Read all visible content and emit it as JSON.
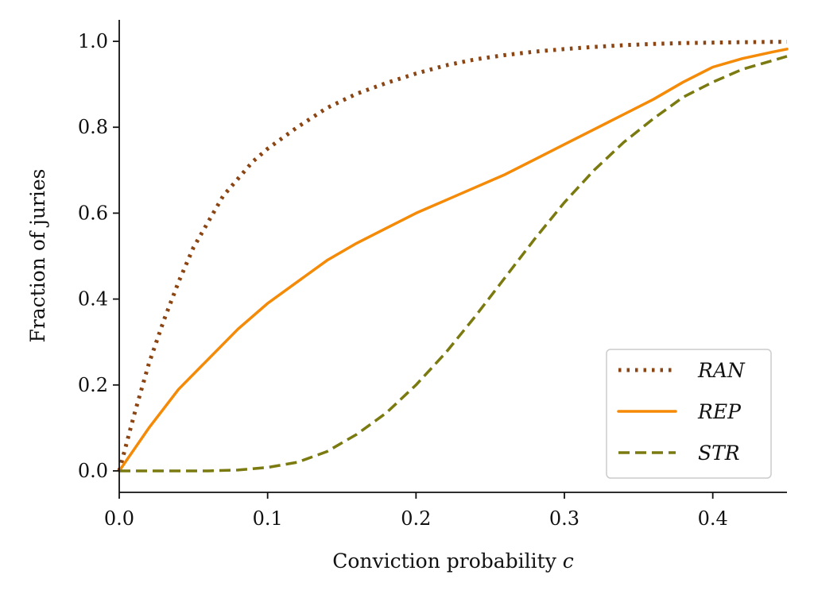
{
  "chart_data": {
    "type": "line",
    "title": "",
    "xlabel": "Conviction probability",
    "xlabel_var": "c",
    "ylabel": "Fraction of juries",
    "xlim": [
      0,
      0.45
    ],
    "ylim": [
      -0.05,
      1.05
    ],
    "xticks": [
      0.0,
      0.1,
      0.2,
      0.3,
      0.4
    ],
    "xtick_labels": [
      "0.0",
      "0.1",
      "0.2",
      "0.3",
      "0.4"
    ],
    "yticks": [
      0.0,
      0.2,
      0.4,
      0.6,
      0.8,
      1.0
    ],
    "ytick_labels": [
      "0.0",
      "0.2",
      "0.4",
      "0.6",
      "0.8",
      "1.0"
    ],
    "grid": false,
    "legend_position": "bottom-right",
    "series": [
      {
        "name": "RAN",
        "color": "#8B4513",
        "style": "dotted",
        "x": [
          0,
          0.01,
          0.02,
          0.03,
          0.04,
          0.05,
          0.06,
          0.07,
          0.08,
          0.09,
          0.1,
          0.12,
          0.14,
          0.16,
          0.18,
          0.2,
          0.22,
          0.24,
          0.26,
          0.28,
          0.3,
          0.32,
          0.34,
          0.36,
          0.38,
          0.4,
          0.42,
          0.45
        ],
        "values": [
          0.0,
          0.13,
          0.25,
          0.35,
          0.44,
          0.52,
          0.58,
          0.64,
          0.68,
          0.72,
          0.75,
          0.8,
          0.845,
          0.878,
          0.903,
          0.925,
          0.944,
          0.958,
          0.968,
          0.976,
          0.982,
          0.987,
          0.991,
          0.994,
          0.996,
          0.997,
          0.998,
          0.999
        ]
      },
      {
        "name": "REP",
        "color": "#F58A07",
        "style": "solid",
        "x": [
          0,
          0.02,
          0.04,
          0.06,
          0.08,
          0.1,
          0.12,
          0.14,
          0.16,
          0.18,
          0.2,
          0.22,
          0.24,
          0.26,
          0.28,
          0.3,
          0.32,
          0.34,
          0.36,
          0.38,
          0.4,
          0.42,
          0.44,
          0.45
        ],
        "values": [
          0.0,
          0.1,
          0.19,
          0.26,
          0.33,
          0.39,
          0.44,
          0.49,
          0.53,
          0.565,
          0.6,
          0.63,
          0.66,
          0.69,
          0.725,
          0.76,
          0.795,
          0.83,
          0.865,
          0.905,
          0.94,
          0.96,
          0.975,
          0.982
        ]
      },
      {
        "name": "STR",
        "color": "#7A7A10",
        "style": "dashed",
        "x": [
          0,
          0.02,
          0.04,
          0.06,
          0.08,
          0.1,
          0.12,
          0.14,
          0.16,
          0.18,
          0.2,
          0.22,
          0.24,
          0.26,
          0.28,
          0.3,
          0.32,
          0.34,
          0.36,
          0.38,
          0.4,
          0.42,
          0.44,
          0.45
        ],
        "values": [
          0.0,
          0.0,
          0.0,
          0.0,
          0.002,
          0.008,
          0.02,
          0.045,
          0.085,
          0.135,
          0.2,
          0.275,
          0.36,
          0.45,
          0.54,
          0.625,
          0.7,
          0.765,
          0.82,
          0.87,
          0.905,
          0.935,
          0.955,
          0.965
        ]
      }
    ]
  }
}
